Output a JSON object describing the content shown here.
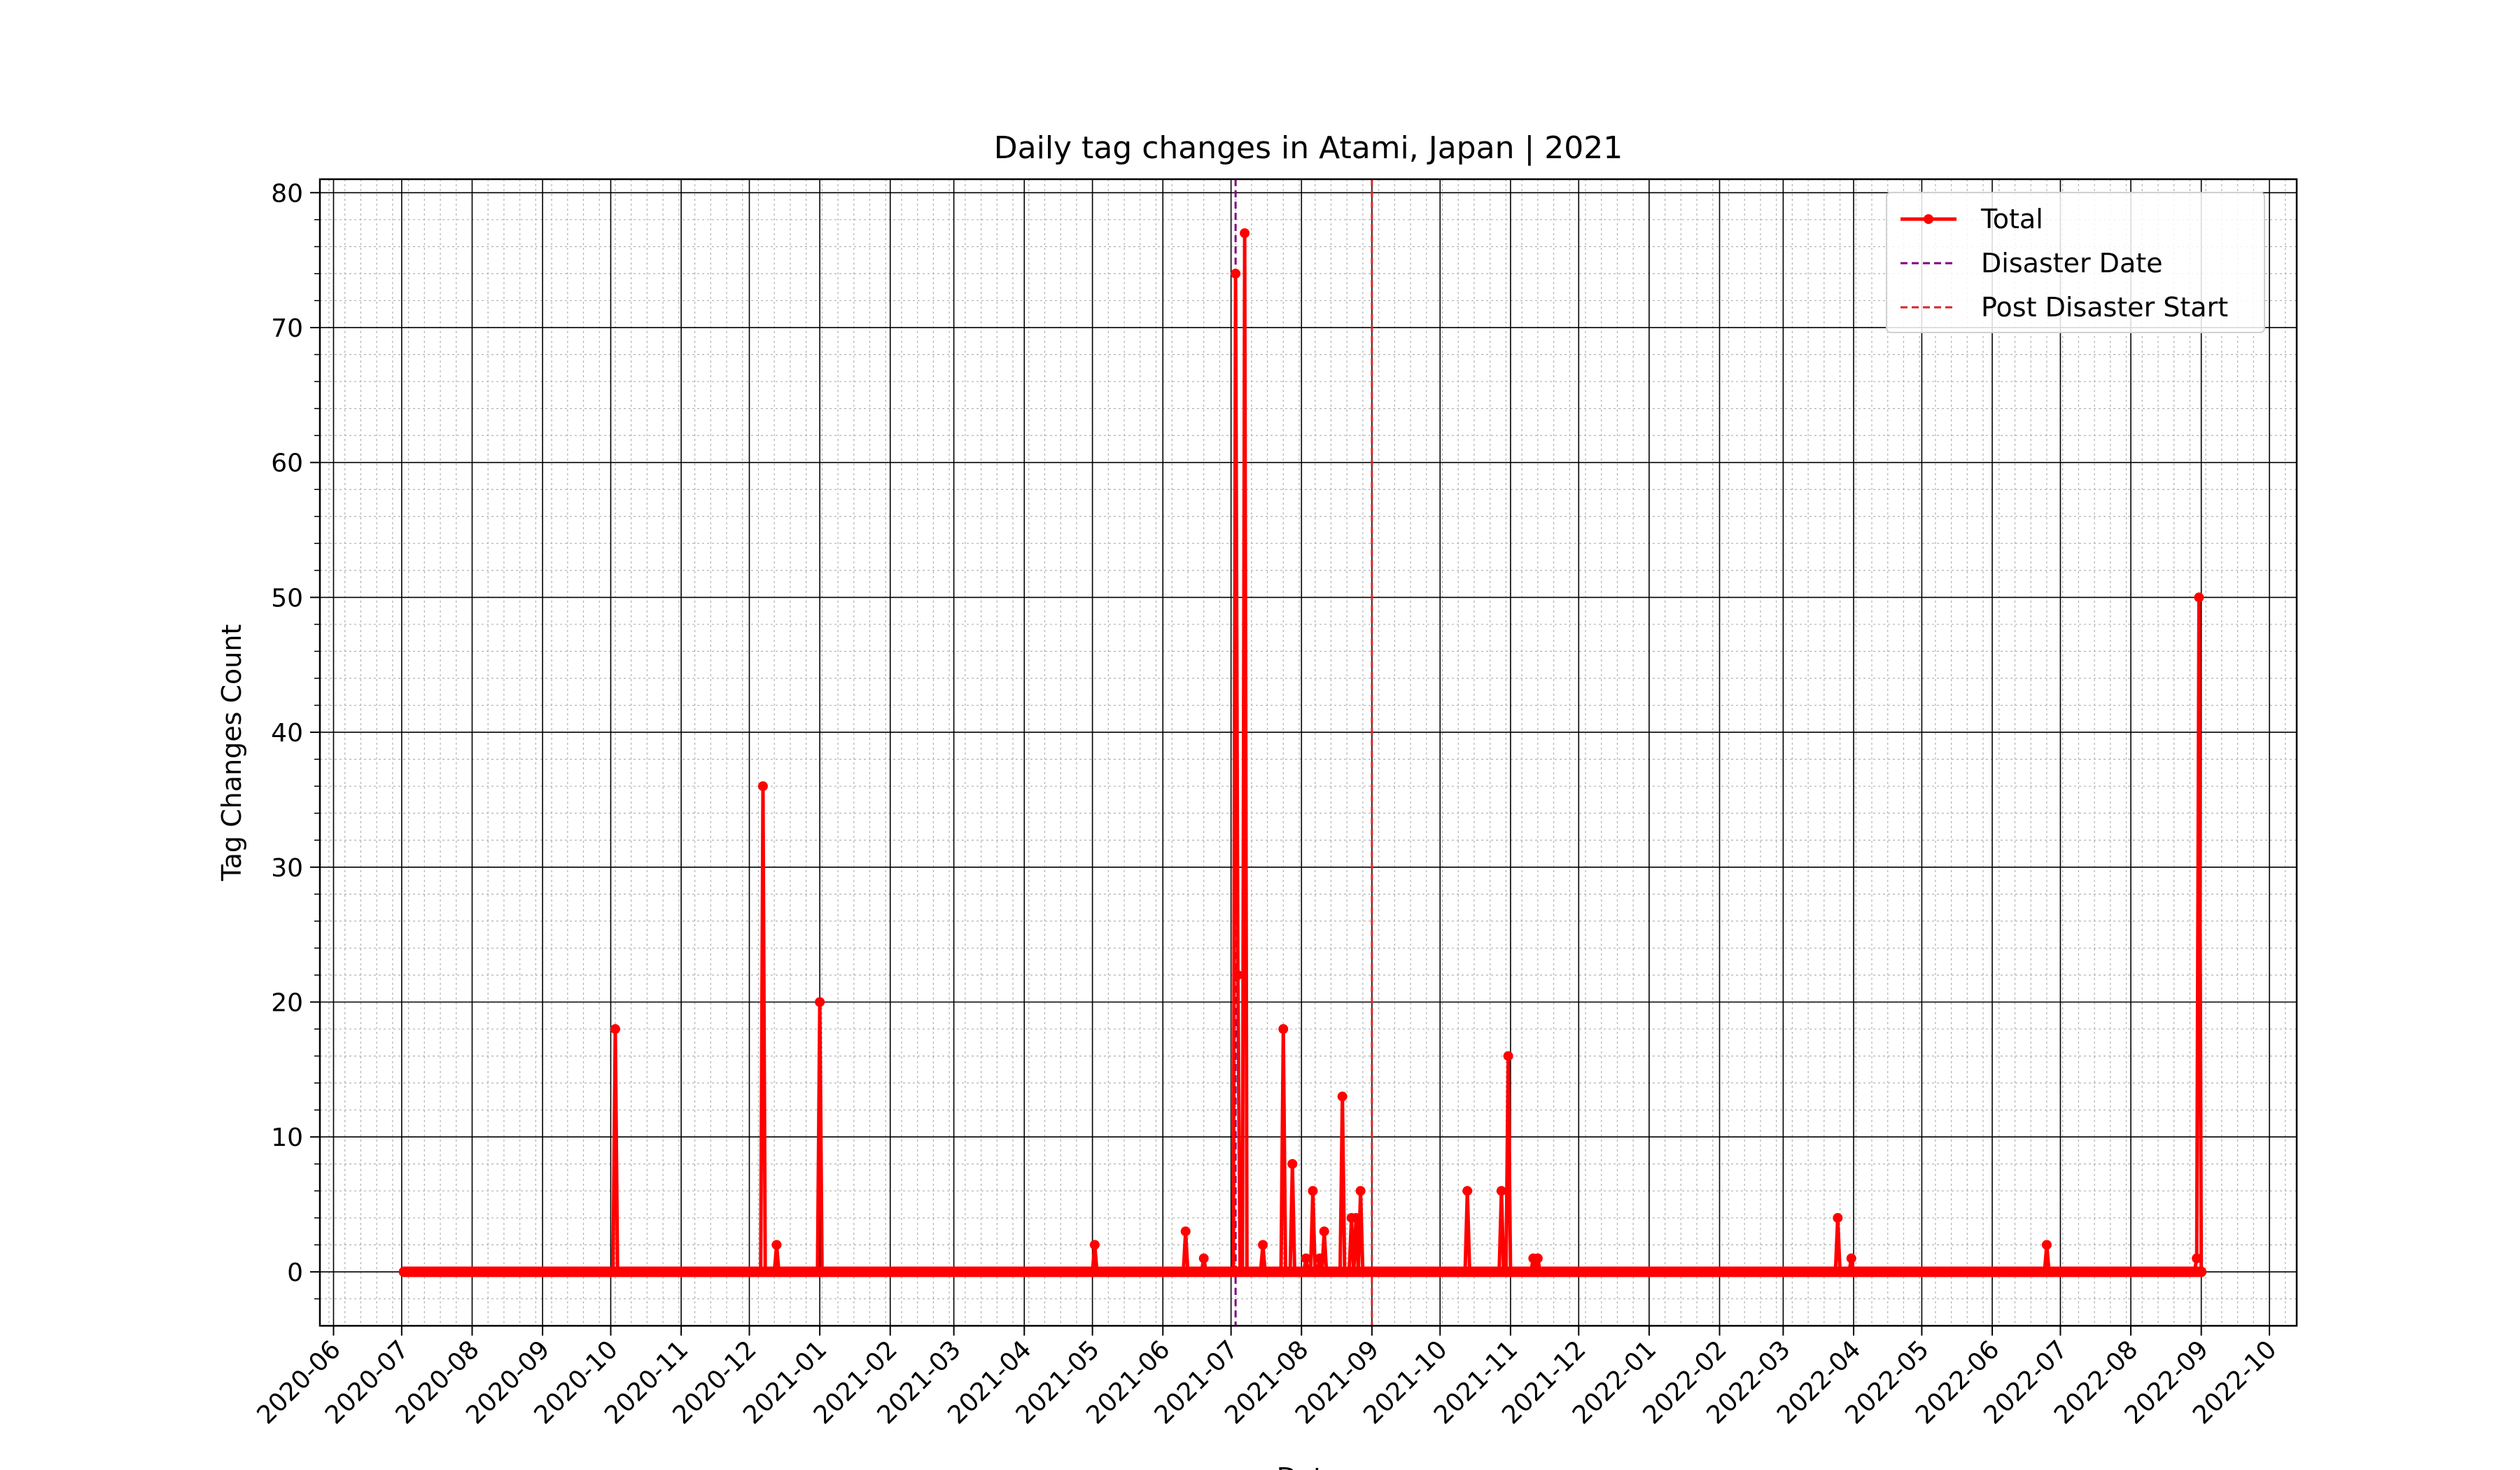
{
  "chart_data": {
    "type": "line",
    "title": "Daily tag changes in Atami, Japan | 2021",
    "xlabel": "Date",
    "ylabel": "Tag Changes Count",
    "xlim": [
      "2020-05-26",
      "2022-10-13"
    ],
    "ylim": [
      -4,
      81
    ],
    "x_ticks": [
      "2020-06",
      "2020-07",
      "2020-08",
      "2020-09",
      "2020-10",
      "2020-11",
      "2020-12",
      "2021-01",
      "2021-02",
      "2021-03",
      "2021-04",
      "2021-05",
      "2021-06",
      "2021-07",
      "2021-08",
      "2021-09",
      "2021-10",
      "2021-11",
      "2021-12",
      "2022-01",
      "2022-02",
      "2022-03",
      "2022-04",
      "2022-05",
      "2022-06",
      "2022-07",
      "2022-08",
      "2022-09",
      "2022-10"
    ],
    "y_ticks": [
      0,
      10,
      20,
      30,
      40,
      50,
      60,
      70,
      80
    ],
    "grid": true,
    "legend": {
      "placement": "top-right",
      "entries": [
        "Total",
        "Disaster Date",
        "Post Disaster Start"
      ]
    },
    "series": [
      {
        "name": "Total",
        "color": "#ff0000",
        "date_range": [
          "2020-07-02",
          "2022-09-01"
        ],
        "baseline": 0,
        "nonzero_points": [
          {
            "x": "2020-10-03",
            "y": 18
          },
          {
            "x": "2020-12-07",
            "y": 36
          },
          {
            "x": "2020-12-13",
            "y": 2
          },
          {
            "x": "2021-01-01",
            "y": 20
          },
          {
            "x": "2021-05-02",
            "y": 2
          },
          {
            "x": "2021-06-11",
            "y": 3
          },
          {
            "x": "2021-06-19",
            "y": 1
          },
          {
            "x": "2021-07-03",
            "y": 74
          },
          {
            "x": "2021-07-04",
            "y": 22
          },
          {
            "x": "2021-07-07",
            "y": 77
          },
          {
            "x": "2021-07-15",
            "y": 2
          },
          {
            "x": "2021-07-24",
            "y": 18
          },
          {
            "x": "2021-07-28",
            "y": 8
          },
          {
            "x": "2021-08-03",
            "y": 1
          },
          {
            "x": "2021-08-06",
            "y": 6
          },
          {
            "x": "2021-08-09",
            "y": 1
          },
          {
            "x": "2021-08-11",
            "y": 3
          },
          {
            "x": "2021-08-19",
            "y": 13
          },
          {
            "x": "2021-08-23",
            "y": 4
          },
          {
            "x": "2021-08-25",
            "y": 4
          },
          {
            "x": "2021-08-27",
            "y": 6
          },
          {
            "x": "2021-10-13",
            "y": 6
          },
          {
            "x": "2021-10-28",
            "y": 6
          },
          {
            "x": "2021-10-31",
            "y": 16
          },
          {
            "x": "2021-11-11",
            "y": 1
          },
          {
            "x": "2021-11-13",
            "y": 1
          },
          {
            "x": "2022-03-25",
            "y": 4
          },
          {
            "x": "2022-03-31",
            "y": 1
          },
          {
            "x": "2022-06-25",
            "y": 2
          },
          {
            "x": "2022-08-30",
            "y": 1
          },
          {
            "x": "2022-08-31",
            "y": 50
          }
        ]
      }
    ],
    "vlines": [
      {
        "name": "Disaster Date",
        "x": "2021-07-03",
        "color": "#800080",
        "style": "dashed"
      },
      {
        "name": "Post Disaster Start",
        "x": "2021-09-01",
        "color": "#d62728",
        "style": "dashed"
      }
    ]
  }
}
